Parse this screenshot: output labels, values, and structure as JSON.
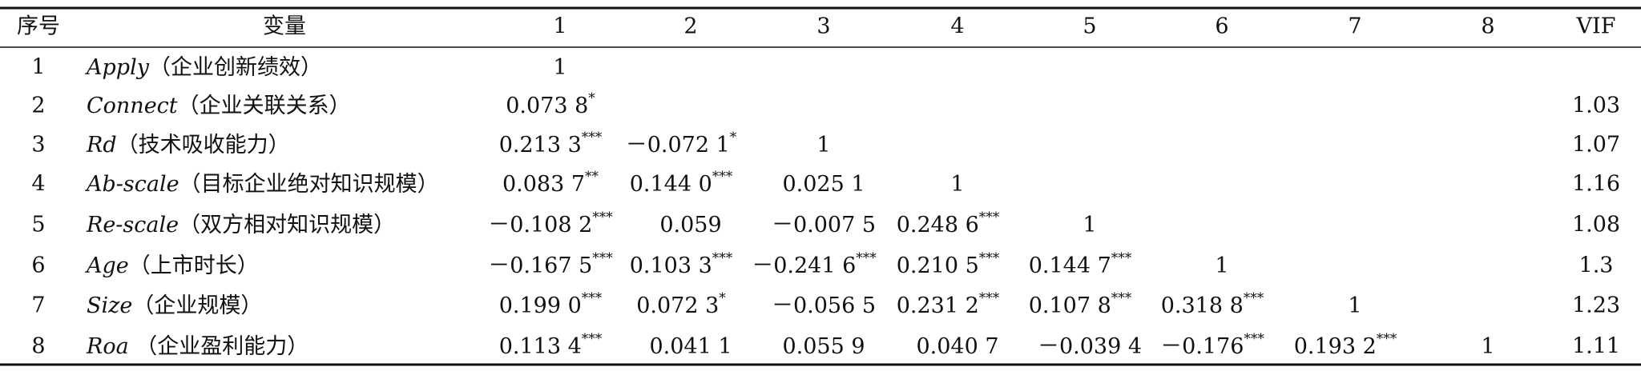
{
  "table": {
    "header": [
      "序号",
      "变量",
      "1",
      "2",
      "3",
      "4",
      "5",
      "6",
      "7",
      "8",
      "VIF"
    ],
    "rows": [
      {
        "no": "1",
        "name": "Apply",
        "desc": "（企业创新绩效）",
        "cells": [
          {
            "text": "1"
          }
        ]
      },
      {
        "no": "2",
        "name": "Connect",
        "desc": "（企业关联关系）",
        "cells": [
          {
            "text": "0.073 8",
            "sig": "*"
          }
        ],
        "vif": "1.03"
      },
      {
        "no": "3",
        "name": "Rd",
        "desc": "（技术吸收能力）",
        "cells": [
          {
            "text": "0.213 3",
            "sig": "***"
          },
          {
            "text": "－0.072 1",
            "sig": "*"
          },
          {
            "text": "1"
          }
        ],
        "vif": "1.07"
      },
      {
        "no": "4",
        "name": "Ab-scale",
        "desc": "（目标企业绝对知识规模）",
        "cells": [
          {
            "text": "0.083 7",
            "sig": "**"
          },
          {
            "text": "0.144 0",
            "sig": "***"
          },
          {
            "text": "0.025 1"
          },
          {
            "text": "1"
          }
        ],
        "vif": "1.16"
      },
      {
        "no": "5",
        "name": "Re-scale",
        "desc": "（双方相对知识规模）",
        "cells": [
          {
            "text": "－0.108 2",
            "sig": "***"
          },
          {
            "text": "0.059"
          },
          {
            "text": "－0.007 5"
          },
          {
            "text": "0.248 6",
            "sig": "***"
          },
          {
            "text": "1"
          }
        ],
        "vif": "1.08"
      },
      {
        "no": "6",
        "name": "Age",
        "desc": "（上市时长）",
        "cells": [
          {
            "text": "－0.167 5",
            "sig": "***"
          },
          {
            "text": "0.103 3",
            "sig": "***"
          },
          {
            "text": "－0.241 6",
            "sig": "***"
          },
          {
            "text": "0.210 5",
            "sig": "***"
          },
          {
            "text": "0.144 7",
            "sig": "***"
          },
          {
            "text": "1"
          }
        ],
        "vif": "1.3"
      },
      {
        "no": "7",
        "name": "Size",
        "desc": "（企业规模）",
        "cells": [
          {
            "text": "0.199 0",
            "sig": "***"
          },
          {
            "text": "0.072 3",
            "sig": "*"
          },
          {
            "text": "－0.056 5"
          },
          {
            "text": "0.231 2",
            "sig": "***"
          },
          {
            "text": "0.107 8",
            "sig": "***"
          },
          {
            "text": "0.318 8",
            "sig": "***"
          },
          {
            "text": "1"
          }
        ],
        "vif": "1.23"
      },
      {
        "no": "8",
        "name": "Roa",
        "desc": " （企业盈利能力）",
        "cells": [
          {
            "text": "0.113 4",
            "sig": "***"
          },
          {
            "text": "0.041 1"
          },
          {
            "text": "0.055 9"
          },
          {
            "text": "0.040 7"
          },
          {
            "text": "－0.039 4"
          },
          {
            "text": "－0.176",
            "sig": "***"
          },
          {
            "text": "0.193 2",
            "sig": "***"
          },
          {
            "text": "1"
          }
        ],
        "vif": "1.11"
      }
    ]
  }
}
